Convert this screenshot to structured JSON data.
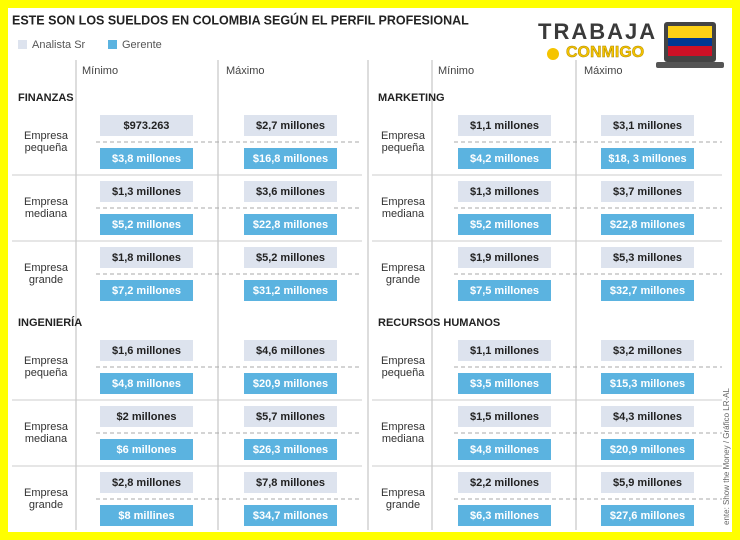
{
  "title": "ESTE SON LOS SUELDOS EN COLOMBIA SEGÚN EL PERFIL PROFESIONAL",
  "legend": [
    "Analista Sr",
    "Gerente"
  ],
  "logo": {
    "line1": "TRABAJA",
    "line2": "CONMIGO"
  },
  "columns": [
    "Mínimo",
    "Máximo"
  ],
  "source": "ente: Show the Money / Gráfico LR-AL",
  "sections": [
    {
      "name": "FINANZAS",
      "rows": [
        {
          "size": [
            "Empresa",
            "pequeña"
          ],
          "minimo": [
            "$973.263",
            "$3,8 millones"
          ],
          "maximo": [
            "$2,7 millones",
            "$16,8 millones"
          ]
        },
        {
          "size": [
            "Empresa",
            "mediana"
          ],
          "minimo": [
            "$1,3 millones",
            "$5,2 millones"
          ],
          "maximo": [
            "$3,6 millones",
            "$22,8 millones"
          ]
        },
        {
          "size": [
            "Empresa",
            "grande"
          ],
          "minimo": [
            "$1,8 millones",
            "$7,2 millones"
          ],
          "maximo": [
            "$5,2 millones",
            "$31,2 millones"
          ]
        }
      ]
    },
    {
      "name": "MARKETING",
      "rows": [
        {
          "size": [
            "Empresa",
            "pequeña"
          ],
          "minimo": [
            "$1,1 millones",
            "$4,2 millones"
          ],
          "maximo": [
            "$3,1 millones",
            "$18, 3 millones"
          ]
        },
        {
          "size": [
            "Empresa",
            "mediana"
          ],
          "minimo": [
            "$1,3 millones",
            "$5,2 millones"
          ],
          "maximo": [
            "$3,7 millones",
            "$22,8 millones"
          ]
        },
        {
          "size": [
            "Empresa",
            "grande"
          ],
          "minimo": [
            "$1,9 millones",
            "$7,5 millones"
          ],
          "maximo": [
            "$5,3 millones",
            "$32,7 millones"
          ]
        }
      ]
    },
    {
      "name": "INGENIERÍA",
      "rows": [
        {
          "size": [
            "Empresa",
            "pequeña"
          ],
          "minimo": [
            "$1,6 millones",
            "$4,8 millones"
          ],
          "maximo": [
            "$4,6 millones",
            "$20,9 millones"
          ]
        },
        {
          "size": [
            "Empresa",
            "mediana"
          ],
          "minimo": [
            "$2 millones",
            "$6 millones"
          ],
          "maximo": [
            "$5,7 millones",
            "$26,3 millones"
          ]
        },
        {
          "size": [
            "Empresa",
            "grande"
          ],
          "minimo": [
            "$2,8 millones",
            "$8 millines"
          ],
          "maximo": [
            "$7,8 millones",
            "$34,7 millones"
          ]
        }
      ]
    },
    {
      "name": "RECURSOS HUMANOS",
      "rows": [
        {
          "size": [
            "Empresa",
            "pequeña"
          ],
          "minimo": [
            "$1,1 millones",
            "$3,5 millones"
          ],
          "maximo": [
            "$3,2 millones",
            "$15,3 millones"
          ]
        },
        {
          "size": [
            "Empresa",
            "mediana"
          ],
          "minimo": [
            "$1,5 millones",
            "$4,8 millones"
          ],
          "maximo": [
            "$4,3 millones",
            "$20,9 millones"
          ]
        },
        {
          "size": [
            "Empresa",
            "grande"
          ],
          "minimo": [
            "$2,2 millones",
            "$6,3 millones"
          ],
          "maximo": [
            "$5,9 millones",
            "$27,6 millones"
          ]
        }
      ]
    }
  ]
}
